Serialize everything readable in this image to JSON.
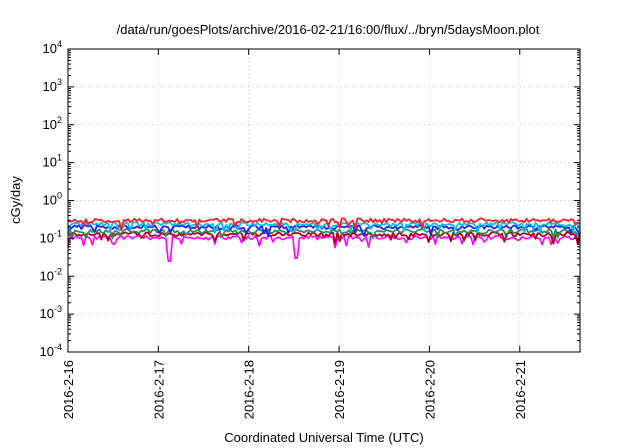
{
  "chart_data": {
    "type": "line",
    "title": "/data/run/goesPlots/archive/2016-02-21/16:00/flux/../bryn/5daysMoon.plot",
    "xlabel": "Coordinated Universal Time (UTC)",
    "ylabel": "cGy/day",
    "yscale": "log",
    "ylim": [
      0.0001,
      10000
    ],
    "y_ticks": [
      {
        "base": "10",
        "exp": "4"
      },
      {
        "base": "10",
        "exp": "3"
      },
      {
        "base": "10",
        "exp": "2"
      },
      {
        "base": "10",
        "exp": "1"
      },
      {
        "base": "10",
        "exp": "0"
      },
      {
        "base": "10",
        "exp": "-1"
      },
      {
        "base": "10",
        "exp": "-2"
      },
      {
        "base": "10",
        "exp": "-3"
      },
      {
        "base": "10",
        "exp": "-4"
      }
    ],
    "x_ticks": [
      "2016-2-16",
      "2016-2-17",
      "2016-2-18",
      "2016-2-19",
      "2016-2-20",
      "2016-2-21"
    ],
    "xlim": [
      "2016-02-16 00:00",
      "2016-02-21 16:00"
    ],
    "grid": true,
    "series": [
      {
        "color": "#ff00ff",
        "level": 0.105
      },
      {
        "color": "#b0001a",
        "level": 0.13
      },
      {
        "color": "#2e8b57",
        "level": 0.155
      },
      {
        "color": "#2020ff",
        "level": 0.2
      },
      {
        "color": "#00bfff",
        "level": 0.24
      },
      {
        "color": "#ff2020",
        "level": 0.3
      }
    ],
    "dips": [
      {
        "date": "2016-02-17 03:00",
        "value": 0.025
      },
      {
        "date": "2016-02-18 12:30",
        "value": 0.03
      }
    ]
  }
}
